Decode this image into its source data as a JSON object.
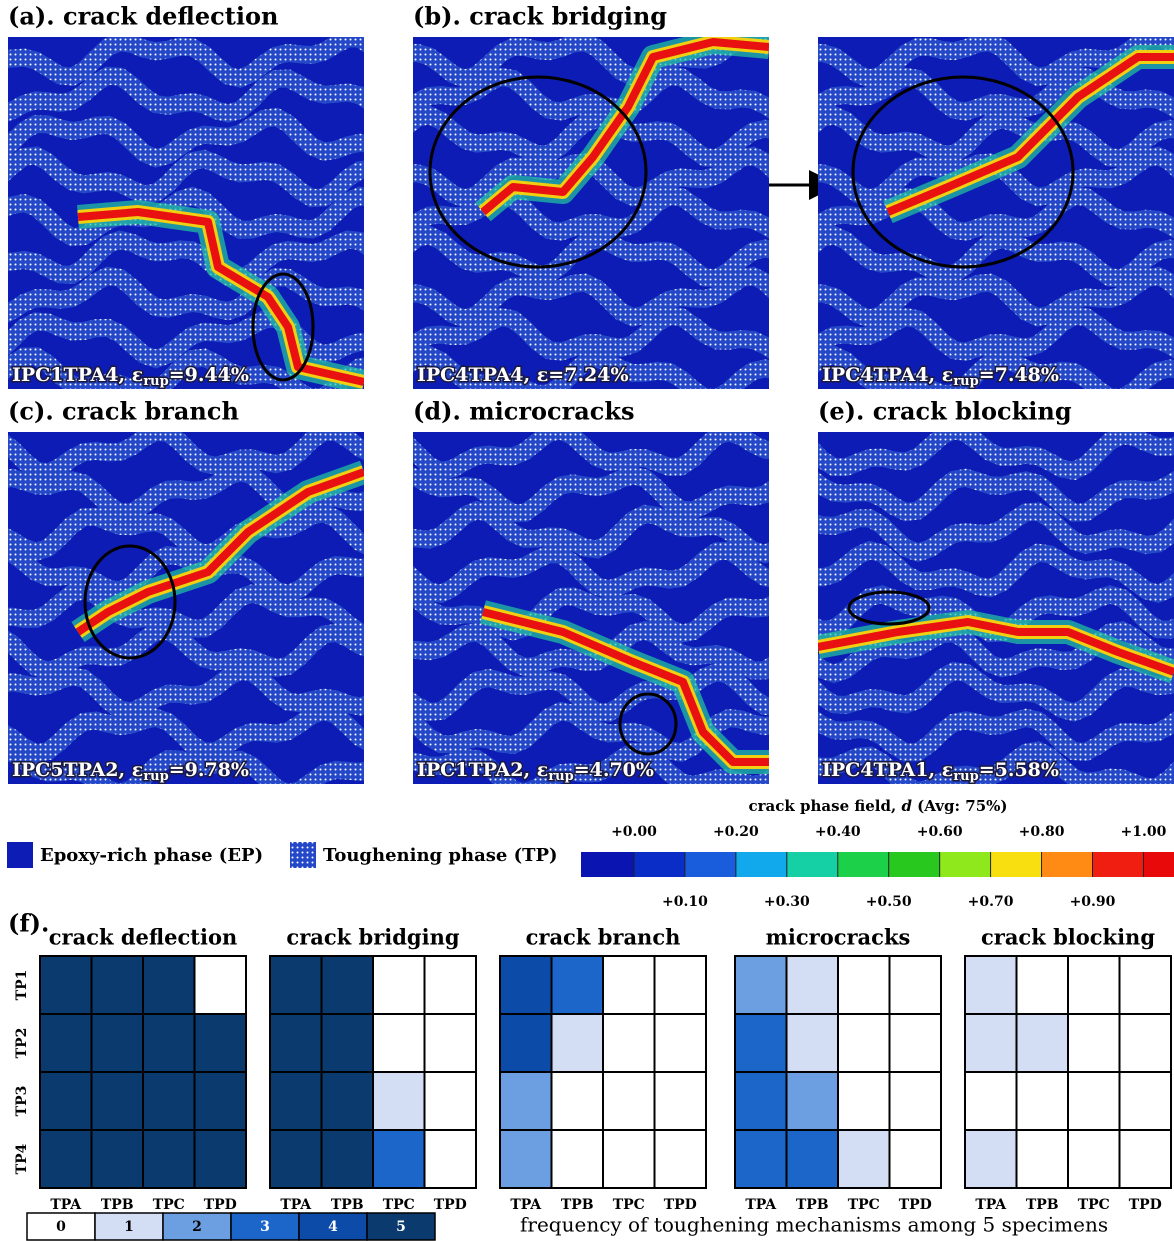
{
  "panels": [
    {
      "title": "(a). crack deflection",
      "caption": {
        "main": "IPC1TPA4, ε",
        "sub": "rup",
        "rest": "=9.44%"
      }
    },
    {
      "title": "(b). crack bridging",
      "caption": {
        "main": "IPC4TPA4, ε=7.24%"
      }
    },
    {
      "caption": {
        "main": "IPC4TPA4, ε",
        "sub": "rup",
        "rest": "=7.48%"
      }
    },
    {
      "title": "(c). crack branch",
      "caption": {
        "main": "IPC5TPA2, ε",
        "sub": "rup",
        "rest": "=9.78%"
      }
    },
    {
      "title": "(d). microcracks",
      "caption": {
        "main": "IPC1TPA2, ε",
        "sub": "rup",
        "rest": "=4.70%"
      }
    },
    {
      "title": "(e). crack blocking",
      "caption": {
        "main": "IPC4TPA1, ε",
        "sub": "rup",
        "rest": "=5.58%"
      }
    }
  ],
  "legend": [
    {
      "label": "Epoxy-rich phase (EP)"
    },
    {
      "label": "Toughening phase (TP)"
    }
  ],
  "colorbar": {
    "title": "crack phase field, ",
    "variable": "d",
    "note": " (Avg: 75%)",
    "lim": [
      -0.104,
      1.06
    ],
    "ticks": [
      {
        "value": 0,
        "label": "+0.00"
      },
      {
        "value": 0.1,
        "label": "+0.10"
      },
      {
        "value": 0.2,
        "label": "+0.20"
      },
      {
        "value": 0.3,
        "label": "+0.30"
      },
      {
        "value": 0.4,
        "label": "+0.40"
      },
      {
        "value": 0.5,
        "label": "+0.50"
      },
      {
        "value": 0.6,
        "label": "+0.60"
      },
      {
        "value": 0.7,
        "label": "+0.70"
      },
      {
        "value": 0.8,
        "label": "+0.80"
      },
      {
        "value": 0.9,
        "label": "+0.90"
      },
      {
        "value": 1,
        "label": "+1.00"
      }
    ],
    "colors": [
      "#0a14b0",
      "#0a2dc8",
      "#1a5ddc",
      "#12a8ec",
      "#14d0a4",
      "#1cd04a",
      "#28c81e",
      "#8ee81c",
      "#f8e010",
      "#ff8a14",
      "#f01e10",
      "#e80a0a"
    ]
  },
  "figure_label": "(f).",
  "chart_data": [
    {
      "type": "heatmap",
      "title": "crack deflection",
      "x": [
        "TPA",
        "TPB",
        "TPC",
        "TPD"
      ],
      "y": [
        "TP1",
        "TP2",
        "TP3",
        "TP4"
      ],
      "values": [
        [
          5,
          5,
          5,
          0
        ],
        [
          5,
          5,
          5,
          5
        ],
        [
          5,
          5,
          5,
          5
        ],
        [
          5,
          5,
          5,
          5
        ]
      ]
    },
    {
      "type": "heatmap",
      "title": "crack bridging",
      "x": [
        "TPA",
        "TPB",
        "TPC",
        "TPD"
      ],
      "values": [
        [
          5,
          5,
          0,
          0
        ],
        [
          5,
          5,
          0,
          0
        ],
        [
          5,
          5,
          1,
          0
        ],
        [
          5,
          5,
          3,
          0
        ]
      ]
    },
    {
      "type": "heatmap",
      "title": "crack branch",
      "x": [
        "TPA",
        "TPB",
        "TPC",
        "TPD"
      ],
      "values": [
        [
          4,
          3,
          0,
          0
        ],
        [
          4,
          1,
          0,
          0
        ],
        [
          2,
          0,
          0,
          0
        ],
        [
          2,
          0,
          0,
          0
        ]
      ]
    },
    {
      "type": "heatmap",
      "title": "microcracks",
      "x": [
        "TPA",
        "TPB",
        "TPC",
        "TPD"
      ],
      "values": [
        [
          2,
          1,
          0,
          0
        ],
        [
          3,
          1,
          0,
          0
        ],
        [
          3,
          2,
          0,
          0
        ],
        [
          3,
          3,
          1,
          0
        ]
      ]
    },
    {
      "type": "heatmap",
      "title": "crack blocking",
      "x": [
        "TPA",
        "TPB",
        "TPC",
        "TPD"
      ],
      "values": [
        [
          1,
          0,
          0,
          0
        ],
        [
          1,
          1,
          0,
          0
        ],
        [
          0,
          0,
          0,
          0
        ],
        [
          1,
          0,
          0,
          0
        ]
      ]
    }
  ],
  "scale": {
    "levels": [
      0,
      1,
      2,
      3,
      4,
      5
    ],
    "colors": [
      "#ffffff",
      "#d3ddf3",
      "#6c9fe2",
      "#1d66c9",
      "#0d4ba8",
      "#0b3a6e"
    ]
  },
  "footnote": "frequency of toughening mechanisms among 5 specimens"
}
